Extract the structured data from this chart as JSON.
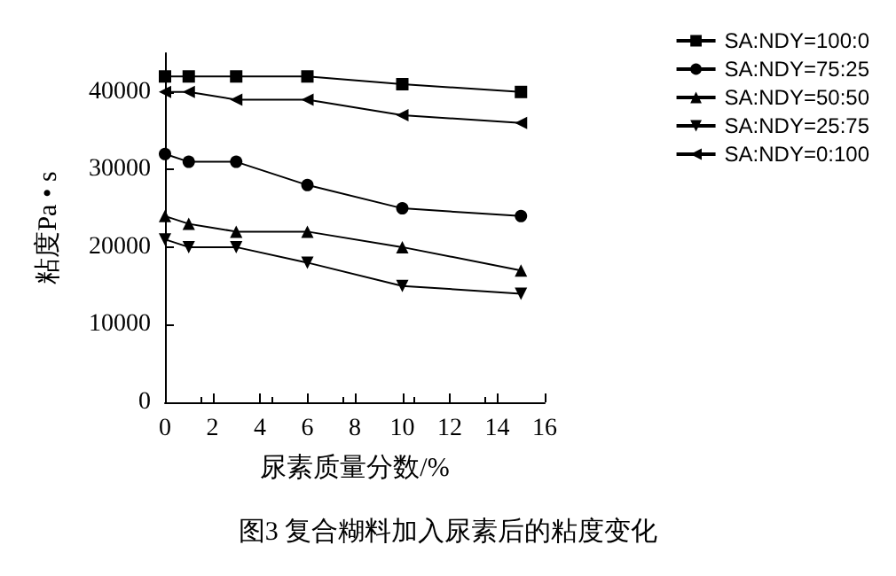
{
  "chart_data": {
    "type": "line",
    "title": "图3 复合糊料加入尿素后的粘度变化",
    "xlabel": "尿素质量分数/%",
    "ylabel": "粘度Pa • s",
    "x": [
      0,
      1,
      3,
      6,
      10,
      15
    ],
    "series": [
      {
        "name": "SA:NDY=100:0",
        "color": "#000000",
        "marker": "square",
        "values": [
          42000,
          42000,
          42000,
          42000,
          41000,
          40000
        ]
      },
      {
        "name": "SA:NDY=75:25",
        "color": "#000000",
        "marker": "circle",
        "values": [
          32000,
          31000,
          31000,
          28000,
          25000,
          24000
        ]
      },
      {
        "name": "SA:NDY=50:50",
        "color": "#000000",
        "marker": "triangle",
        "values": [
          24000,
          23000,
          22000,
          22000,
          20000,
          17000
        ]
      },
      {
        "name": "SA:NDY=25:75",
        "color": "#000000",
        "marker": "triangle-down",
        "values": [
          21000,
          20000,
          20000,
          18000,
          15000,
          14000
        ]
      },
      {
        "name": "SA:NDY=0:100",
        "color": "#000000",
        "marker": "triangle-left",
        "values": [
          40000,
          40000,
          39000,
          39000,
          37000,
          36000
        ]
      }
    ],
    "xlim": [
      0,
      16
    ],
    "xticks": [
      0,
      2,
      4,
      6,
      8,
      10,
      12,
      14,
      16
    ],
    "ylim": [
      0,
      45000
    ],
    "yticks": [
      0,
      10000,
      20000,
      30000,
      40000
    ],
    "grid": false,
    "legend": "top right",
    "line_style": "solid"
  }
}
